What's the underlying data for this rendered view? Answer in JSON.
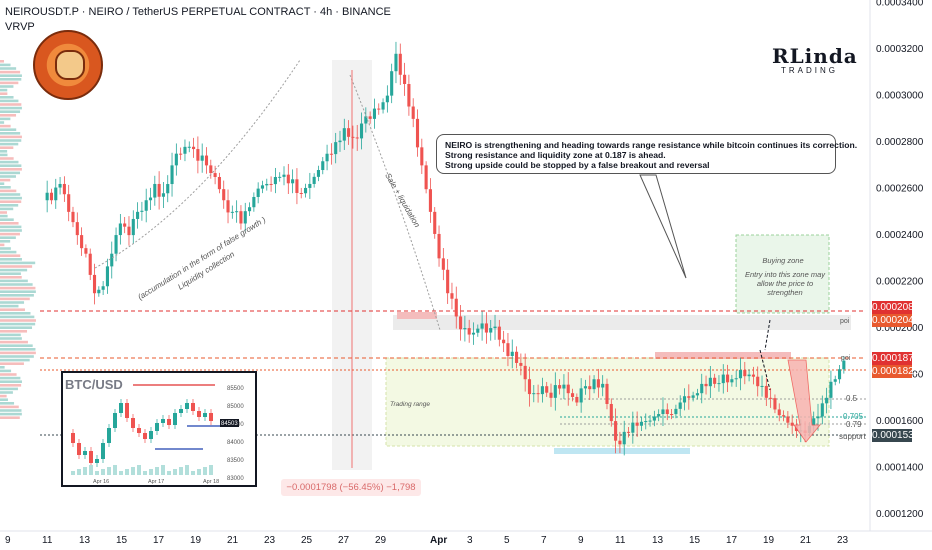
{
  "header": {
    "title": "NEIROUSDT.P · NEIRO / TetherUS PERPETUAL CONTRACT · 4h · BINANCE",
    "indicator": "VRVP"
  },
  "brand": {
    "name": "RLinda",
    "sub": "TRADING"
  },
  "note": {
    "lines": [
      "NEIRO is strengthening and heading towards range resistance while bitcoin continues its correction.",
      "Strong resistance and liquidity zone at 0.187 is ahead.",
      "Strong upside could be stopped by a false breakout and reversal"
    ]
  },
  "annotations": {
    "liquidity": "Liquidity collection",
    "liquidity2": "(accumulation in the form of false growth )",
    "sale": "Sale + liquidation",
    "trading_range": "Trading range",
    "buying_zone": "Buying zone",
    "buying_zone_desc": "Entry into this zone may allow the price to strengthen",
    "delta": "−0.0001798 (−56.45%) −1,798"
  },
  "levels": {
    "poi_upper": "poi",
    "poi_lower": "poi",
    "fib_05": "0.5",
    "fib_0705": "0.705",
    "fib_079": "0.79",
    "support": "support"
  },
  "price_tags": [
    {
      "value": "0.0002080",
      "color": "#e03131"
    },
    {
      "value": "0.0002045",
      "color": "#e8592e"
    },
    {
      "value": "0.0001871",
      "color": "#e03131"
    },
    {
      "value": "0.0001823",
      "color": "#e8592e"
    },
    {
      "value": "0.0001536",
      "color": "#37474f"
    }
  ],
  "colors": {
    "up": "#26a69a",
    "down": "#ef5350",
    "bg": "#ffffff",
    "tag_dark": "#37474f"
  },
  "btc_inset": {
    "title": "BTC/USD",
    "y_ticks": [
      "85500",
      "85000",
      "84500",
      "84000",
      "83500",
      "83000"
    ],
    "price_label": "84503",
    "x_ticks": [
      "Apr 16",
      "Apr 17",
      "Apr 18"
    ]
  },
  "chart_data": {
    "type": "candlestick",
    "title": "NEIROUSDT.P · NEIRO / TetherUS PERPETUAL CONTRACT · 4h · BINANCE",
    "y_ticks": [
      "0.0003400",
      "0.0003200",
      "0.0003000",
      "0.0002800",
      "0.0002600",
      "0.0002400",
      "0.0002200",
      "0.0002000",
      "0.0001800",
      "0.0001600",
      "0.0001400",
      "0.0001200"
    ],
    "ylim": [
      0.000114,
      0.000342
    ],
    "x_ticks": [
      "9",
      "11",
      "13",
      "15",
      "17",
      "19",
      "21",
      "23",
      "25",
      "27",
      "29",
      "Apr",
      "3",
      "5",
      "7",
      "9",
      "11",
      "13",
      "15",
      "17",
      "19",
      "21",
      "23"
    ],
    "close_path": [
      0.000255,
      0.000262,
      0.00025,
      0.00024,
      0.000232,
      0.000215,
      0.000218,
      0.000232,
      0.000245,
      0.00024,
      0.00025,
      0.000255,
      0.000262,
      0.000258,
      0.00027,
      0.000275,
      0.000278,
      0.000272,
      0.00027,
      0.000265,
      0.000255,
      0.00025,
      0.000245,
      0.000252,
      0.00026,
      0.000262,
      0.000265,
      0.000266,
      0.000264,
      0.000258,
      0.000262,
      0.000268,
      0.000275,
      0.00028,
      0.000286,
      0.000282,
      0.000288,
      0.00029,
      0.000294,
      0.0003,
      0.000318,
      0.000305,
      0.00029,
      0.00027,
      0.00025,
      0.00023,
      0.000215,
      0.000205,
      0.0002,
      0.000198,
      0.000202,
      0.0002,
      0.000195,
      0.000188,
      0.000185,
      0.000178,
      0.000172,
      0.000175,
      0.00017,
      0.000174,
      0.000172,
      0.000168,
      0.000175,
      0.000178,
      0.000176,
      0.00016,
      0.00015,
      0.000155,
      0.000158,
      0.00016,
      0.000162,
      0.000165,
      0.000163,
      0.000168,
      0.00017,
      0.000172,
      0.000175,
      0.000176,
      0.00018,
      0.000178,
      0.000182,
      0.00018,
      0.000175,
      0.00017,
      0.000165,
      0.000162,
      0.000158,
      0.000156,
      0.000158,
      0.000162,
      0.00017,
      0.000178,
      0.000186
    ]
  }
}
